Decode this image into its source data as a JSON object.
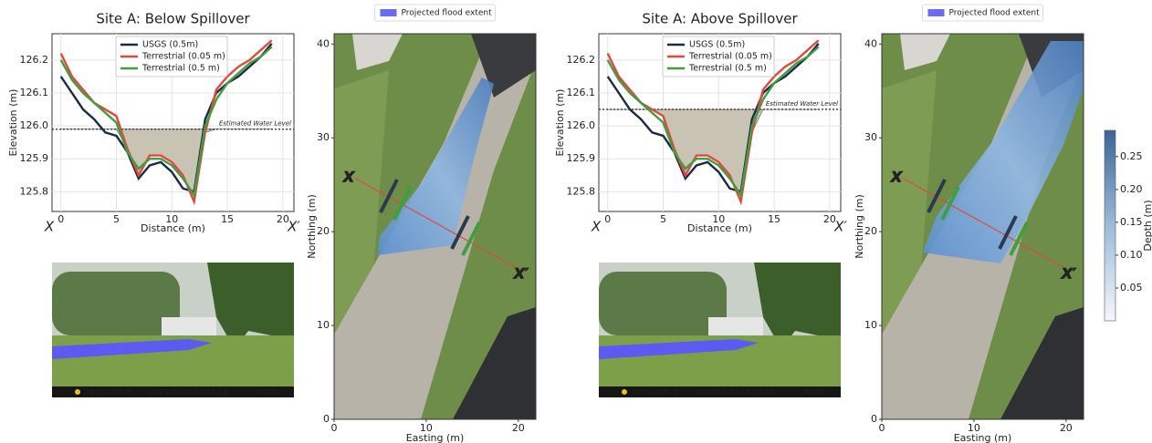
{
  "chart_data": [
    {
      "type": "line",
      "title": "Site A: Below Spillover",
      "xlabel": "Distance (m)",
      "ylabel": "Elevation (m)",
      "x": [
        0,
        1,
        2,
        3,
        4,
        5,
        6,
        7,
        8,
        9,
        10,
        11,
        12,
        13,
        14,
        15,
        16,
        17,
        18,
        19
      ],
      "series": [
        {
          "name": "USGS (0.5m)",
          "color": "#1c2b45",
          "values": [
            126.15,
            126.1,
            126.05,
            126.02,
            125.98,
            125.97,
            125.92,
            125.84,
            125.88,
            125.89,
            125.86,
            125.81,
            125.8,
            126.02,
            126.1,
            126.13,
            126.15,
            126.18,
            126.21,
            126.25
          ]
        },
        {
          "name": "Terrestrial (0.05 m)",
          "color": "#e3483c",
          "values": [
            126.22,
            126.15,
            126.11,
            126.07,
            126.05,
            126.03,
            125.93,
            125.85,
            125.91,
            125.91,
            125.89,
            125.85,
            125.77,
            125.98,
            126.11,
            126.15,
            126.18,
            126.2,
            126.23,
            126.26
          ]
        },
        {
          "name": "Terrestrial (0.5 m)",
          "color": "#3f9e41",
          "values": [
            126.2,
            126.14,
            126.1,
            126.07,
            126.04,
            126.01,
            125.92,
            125.87,
            125.9,
            125.9,
            125.88,
            125.84,
            125.79,
            126.0,
            126.08,
            126.13,
            126.16,
            126.19,
            126.21,
            126.24
          ]
        }
      ],
      "water_level": 125.99,
      "water_label": "Estimated Water Level",
      "start_label": "X",
      "end_label": "X′",
      "xlim": [
        -0.8,
        21
      ],
      "ylim": [
        125.74,
        126.28
      ],
      "xticks": [
        0,
        5,
        10,
        15,
        20
      ],
      "yticks": [
        126.2,
        126.1,
        {
          "value": 126,
          "label": "126.0"
        },
        125.9,
        125.8
      ],
      "grid": true
    },
    {
      "type": "map",
      "legend_label": "Projected flood extent",
      "flood_color": "#6b6bf0",
      "xlabel": "Easting (m)",
      "ylabel": "Northing (m)",
      "start_label": "X",
      "end_label": "X′",
      "xlim": [
        0,
        21.9
      ],
      "ylim": [
        0,
        41.1
      ],
      "xticks": [
        0,
        10,
        20
      ],
      "yticks": [
        0,
        10,
        20,
        30,
        40
      ]
    },
    {
      "type": "line",
      "title": "Site A: Above Spillover",
      "xlabel": "Distance (m)",
      "ylabel": "Elevation (m)",
      "x": [
        0,
        1,
        2,
        3,
        4,
        5,
        6,
        7,
        8,
        9,
        10,
        11,
        12,
        13,
        14,
        15,
        16,
        17,
        18,
        19
      ],
      "series": [
        {
          "name": "USGS (0.5m)",
          "color": "#1c2b45",
          "values": [
            126.15,
            126.1,
            126.05,
            126.02,
            125.98,
            125.97,
            125.92,
            125.84,
            125.88,
            125.89,
            125.86,
            125.81,
            125.8,
            126.02,
            126.1,
            126.13,
            126.15,
            126.18,
            126.21,
            126.25
          ]
        },
        {
          "name": "Terrestrial (0.05 m)",
          "color": "#e3483c",
          "values": [
            126.22,
            126.15,
            126.11,
            126.07,
            126.05,
            126.03,
            125.93,
            125.85,
            125.91,
            125.91,
            125.89,
            125.85,
            125.77,
            125.98,
            126.11,
            126.15,
            126.18,
            126.2,
            126.23,
            126.26
          ]
        },
        {
          "name": "Terrestrial (0.5 m)",
          "color": "#3f9e41",
          "values": [
            126.2,
            126.14,
            126.1,
            126.07,
            126.04,
            126.01,
            125.92,
            125.87,
            125.9,
            125.9,
            125.88,
            125.84,
            125.79,
            126.0,
            126.08,
            126.13,
            126.16,
            126.19,
            126.21,
            126.24
          ]
        }
      ],
      "water_level": 126.05,
      "water_label": "Estimated Water Level",
      "start_label": "X",
      "end_label": "X′",
      "xlim": [
        -0.8,
        21
      ],
      "ylim": [
        125.74,
        126.28
      ],
      "xticks": [
        0,
        5,
        10,
        15,
        20
      ],
      "yticks": [
        126.2,
        126.1,
        {
          "value": 126,
          "label": "126.0"
        },
        125.9,
        125.8
      ],
      "grid": true
    },
    {
      "type": "map",
      "legend_label": "Projected flood extent",
      "flood_color": "#6b6bf0",
      "xlabel": "Easting (m)",
      "ylabel": "Northing (m)",
      "start_label": "X",
      "end_label": "X′",
      "xlim": [
        0,
        21.9
      ],
      "ylim": [
        0,
        41.1
      ],
      "xticks": [
        0,
        10,
        20
      ],
      "yticks": [
        0,
        10,
        20,
        30,
        40
      ],
      "colorbar": {
        "label": "Depth (m)",
        "lim": [
          0,
          0.29
        ],
        "ticks": [
          0.05,
          {
            "value": 0.1,
            "label": "0.10"
          },
          0.15,
          {
            "value": 0.2,
            "label": "0.20"
          },
          0.25
        ]
      }
    }
  ],
  "photos": [
    {
      "temperature": "20 °C / 68 °F",
      "timestamp": "2024/05/14 14:51:13",
      "frame": "0010"
    },
    {
      "temperature": "20 °C / 68 °F",
      "timestamp": "2024/05/14 14:21:13",
      "frame": "0010"
    }
  ]
}
